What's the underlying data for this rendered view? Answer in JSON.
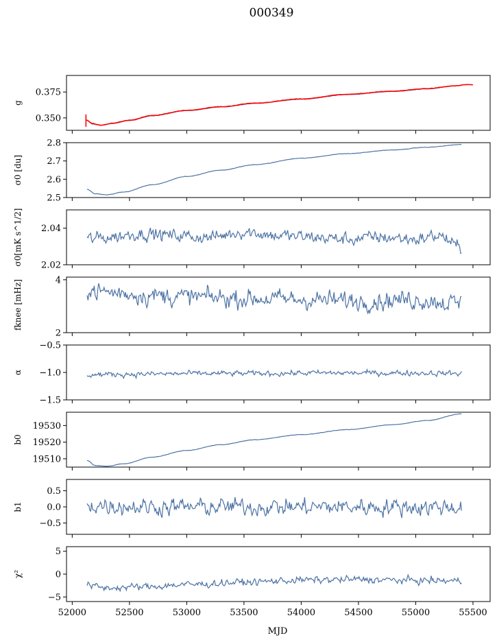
{
  "chart_data": {
    "type": "line",
    "title": "000349",
    "xlabel": "MJD",
    "xlim": [
      51950,
      55650
    ],
    "x_ticks": [
      52000,
      52500,
      53000,
      53500,
      54000,
      54500,
      55000,
      55500
    ],
    "x_tick_labels": [
      "52000",
      "52500",
      "53000",
      "53500",
      "54000",
      "54500",
      "55000",
      "55500"
    ],
    "panels": [
      {
        "id": "g",
        "ylabel": "g",
        "ylim": [
          0.338,
          0.391
        ],
        "yticks": [
          0.35,
          0.375
        ],
        "ytick_labels": [
          "0.350",
          "0.375"
        ],
        "series": [
          {
            "name": "g-model",
            "color": "#4c72a4",
            "kind": "smooth",
            "x": [
              52120,
              52180,
              52250,
              52350,
              52500,
              52700,
              53000,
              53300,
              53600,
              54000,
              54400,
              54800,
              55100,
              55350,
              55400
            ],
            "y": [
              0.348,
              0.344,
              0.343,
              0.3445,
              0.3475,
              0.352,
              0.357,
              0.3605,
              0.364,
              0.368,
              0.3725,
              0.3755,
              0.378,
              0.381,
              0.3815
            ]
          },
          {
            "name": "g-measured",
            "color": "#ff0000",
            "kind": "smooth",
            "x": [
              52120,
              52180,
              52250,
              52350,
              52500,
              52700,
              53000,
              53300,
              53600,
              54000,
              54400,
              54800,
              55100,
              55350,
              55450,
              55500
            ],
            "y": [
              0.348,
              0.3445,
              0.343,
              0.3448,
              0.3478,
              0.3523,
              0.3573,
              0.3608,
              0.3643,
              0.3683,
              0.3728,
              0.3758,
              0.3783,
              0.381,
              0.3822,
              0.382
            ]
          }
        ]
      },
      {
        "id": "sigma0-du",
        "ylabel": "σ0 [du]",
        "ylim": [
          2.5,
          2.8
        ],
        "yticks": [
          2.5,
          2.6,
          2.7,
          2.8
        ],
        "ytick_labels": [
          "2.5",
          "2.6",
          "2.7",
          "2.8"
        ],
        "series": [
          {
            "name": "sigma0-du",
            "color": "#4c72a4",
            "kind": "smooth",
            "x": [
              52130,
              52200,
              52300,
              52450,
              52700,
              53000,
              53300,
              53600,
              54000,
              54400,
              54800,
              55100,
              55400
            ],
            "y": [
              2.545,
              2.52,
              2.515,
              2.53,
              2.57,
              2.615,
              2.65,
              2.68,
              2.715,
              2.74,
              2.76,
              2.775,
              2.79
            ]
          }
        ]
      },
      {
        "id": "sigma0-mk",
        "ylabel": "σ0[mK s^1/2]",
        "ylim": [
          2.02,
          2.05
        ],
        "yticks": [
          2.02,
          2.04
        ],
        "ytick_labels": [
          "2.02",
          "2.04"
        ],
        "series": [
          {
            "name": "sigma0-mk",
            "color": "#4c72a4",
            "kind": "noisy",
            "x": [
              52130,
              52300,
              52600,
              52900,
              53200,
              53500,
              53800,
              54100,
              54400,
              54700,
              55000,
              55200,
              55400
            ],
            "y": [
              2.034,
              2.035,
              2.037,
              2.036,
              2.035,
              2.038,
              2.036,
              2.035,
              2.034,
              2.035,
              2.034,
              2.036,
              2.029
            ],
            "noise": 0.0032
          }
        ]
      },
      {
        "id": "fknee",
        "ylabel": "fknee [mHz]",
        "ylim": [
          2,
          4.1
        ],
        "yticks": [
          2,
          4
        ],
        "ytick_labels": [
          "2",
          "4"
        ],
        "series": [
          {
            "name": "fknee",
            "color": "#4c72a4",
            "kind": "noisy",
            "x": [
              52130,
              52400,
              52700,
              53000,
              53500,
              54000,
              54500,
              55000,
              55400
            ],
            "y": [
              3.6,
              3.5,
              3.4,
              3.35,
              3.3,
              3.25,
              3.2,
              3.25,
              3.1
            ],
            "noise": 0.32
          }
        ]
      },
      {
        "id": "alpha",
        "ylabel": "α",
        "ylim": [
          -1.5,
          -0.5
        ],
        "yticks": [
          -1.5,
          -1.0,
          -0.5
        ],
        "ytick_labels": [
          "−1.5",
          "−1.0",
          "−0.5"
        ],
        "series": [
          {
            "name": "alpha",
            "color": "#4c72a4",
            "kind": "noisy",
            "x": [
              52130,
              52600,
              53100,
              53600,
              54100,
              54600,
              55100,
              55400
            ],
            "y": [
              -1.04,
              -1.03,
              -1.02,
              -1.02,
              -1.01,
              -1.01,
              -1.01,
              -1.02
            ],
            "noise": 0.045
          }
        ]
      },
      {
        "id": "b0",
        "ylabel": "b0",
        "ylim": [
          19505,
          19538
        ],
        "yticks": [
          19510,
          19520,
          19530
        ],
        "ytick_labels": [
          "19510",
          "19520",
          "19530"
        ],
        "series": [
          {
            "name": "b0",
            "color": "#4c72a4",
            "kind": "smooth",
            "x": [
              52130,
              52200,
              52300,
              52450,
              52700,
              53000,
              53300,
              53600,
              54000,
              54400,
              54800,
              55100,
              55400
            ],
            "y": [
              19509,
              19506,
              19505.5,
              19507,
              19511,
              19515,
              19518.5,
              19521.5,
              19524.5,
              19527.5,
              19530.5,
              19533,
              19537
            ]
          }
        ]
      },
      {
        "id": "b1",
        "ylabel": "b1",
        "ylim": [
          -0.85,
          0.85
        ],
        "yticks": [
          -0.5,
          0.0,
          0.5
        ],
        "ytick_labels": [
          "−0.5",
          "0.0",
          "0.5"
        ],
        "series": [
          {
            "name": "b1",
            "color": "#4c72a4",
            "kind": "noisy",
            "x": [
              52130,
              52700,
              53300,
              53900,
              54500,
              55100,
              55400
            ],
            "y": [
              0.05,
              0.0,
              0.0,
              0.0,
              0.0,
              0.0,
              0.0
            ],
            "noise": 0.24
          }
        ]
      },
      {
        "id": "chi2",
        "ylabel": "χ²",
        "ylim": [
          -6,
          6
        ],
        "yticks": [
          -5,
          0,
          5
        ],
        "ytick_labels": [
          "−5",
          "0",
          "5"
        ],
        "series": [
          {
            "name": "chi2",
            "color": "#4c72a4",
            "kind": "noisy",
            "x": [
              52130,
              52300,
              52600,
              53000,
              53500,
              54000,
              54500,
              55000,
              55400
            ],
            "y": [
              -2.5,
              -3.0,
              -2.8,
              -2.3,
              -1.8,
              -1.3,
              -1.2,
              -1.4,
              -1.5
            ],
            "noise": 0.7
          }
        ]
      }
    ]
  }
}
